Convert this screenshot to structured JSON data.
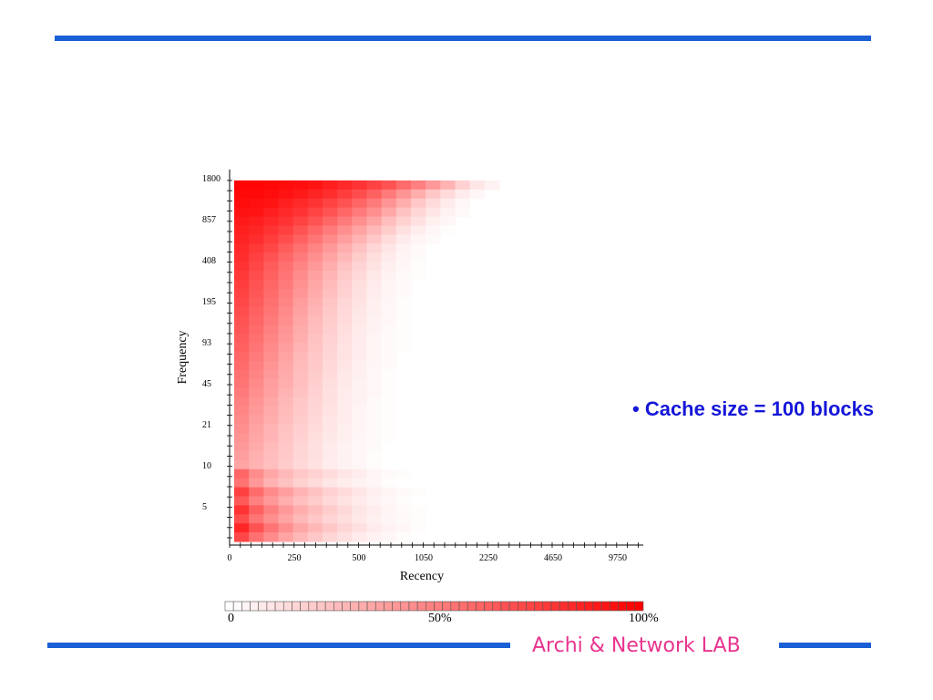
{
  "slide": {
    "bullet": "• Cache size = 100 blocks",
    "footer": "Archi & Network LAB",
    "accent_color": "#1a5fd6",
    "footer_color": "#e8348f",
    "bullet_color": "#1416d8"
  },
  "chart_data": {
    "type": "heatmap",
    "title": "",
    "xlabel": "Recency",
    "ylabel": "Frequency",
    "x_ticks": [
      "0",
      "250",
      "500",
      "1050",
      "2250",
      "4650",
      "9750"
    ],
    "y_ticks": [
      "1800",
      "857",
      "408",
      "195",
      "93",
      "45",
      "21",
      "10",
      "5"
    ],
    "color_scale": {
      "min_label": "0",
      "mid_label": "50%",
      "max_label": "100%",
      "min_color": "#ffffff",
      "max_color": "#ff0000"
    },
    "grid": false,
    "description_of_values": "cell intensity in percent, rows from top (highest frequency) to bottom (lowest frequency), columns from recency 0 outward",
    "intensity": [
      [
        98,
        98,
        97,
        95,
        94,
        92,
        88,
        84,
        80,
        74,
        68,
        58,
        50,
        40,
        30,
        18,
        10,
        5
      ],
      [
        97,
        97,
        95,
        93,
        90,
        86,
        82,
        76,
        70,
        62,
        52,
        42,
        32,
        22,
        14,
        8,
        3,
        0
      ],
      [
        95,
        94,
        92,
        88,
        84,
        80,
        74,
        68,
        60,
        52,
        42,
        32,
        22,
        14,
        8,
        3,
        0,
        0
      ],
      [
        93,
        92,
        88,
        84,
        80,
        74,
        68,
        60,
        52,
        44,
        34,
        24,
        16,
        10,
        5,
        2,
        0,
        0
      ],
      [
        90,
        88,
        84,
        80,
        74,
        68,
        60,
        52,
        44,
        36,
        26,
        18,
        12,
        6,
        3,
        0,
        0,
        0
      ],
      [
        88,
        85,
        80,
        75,
        68,
        60,
        52,
        44,
        36,
        28,
        20,
        12,
        7,
        3,
        1,
        0,
        0,
        0
      ],
      [
        86,
        82,
        76,
        70,
        62,
        54,
        46,
        38,
        30,
        22,
        14,
        8,
        4,
        2,
        0,
        0,
        0,
        0
      ],
      [
        84,
        78,
        72,
        64,
        56,
        48,
        40,
        32,
        24,
        16,
        10,
        5,
        2,
        0,
        0,
        0,
        0,
        0
      ],
      [
        82,
        75,
        68,
        60,
        52,
        44,
        36,
        28,
        20,
        13,
        8,
        4,
        2,
        0,
        0,
        0,
        0,
        0
      ],
      [
        80,
        72,
        64,
        56,
        48,
        40,
        32,
        24,
        17,
        11,
        6,
        3,
        1,
        0,
        0,
        0,
        0,
        0
      ],
      [
        78,
        70,
        62,
        54,
        45,
        37,
        29,
        21,
        15,
        9,
        5,
        2,
        1,
        0,
        0,
        0,
        0,
        0
      ],
      [
        76,
        68,
        60,
        52,
        43,
        35,
        27,
        19,
        13,
        8,
        4,
        2,
        0,
        0,
        0,
        0,
        0,
        0
      ],
      [
        74,
        66,
        58,
        50,
        41,
        33,
        25,
        18,
        12,
        7,
        4,
        2,
        0,
        0,
        0,
        0,
        0,
        0
      ],
      [
        72,
        64,
        56,
        48,
        39,
        31,
        23,
        16,
        11,
        6,
        3,
        1,
        0,
        0,
        0,
        0,
        0,
        0
      ],
      [
        70,
        62,
        54,
        46,
        37,
        29,
        21,
        15,
        10,
        6,
        3,
        1,
        0,
        0,
        0,
        0,
        0,
        0
      ],
      [
        68,
        60,
        52,
        44,
        35,
        27,
        20,
        14,
        9,
        5,
        3,
        1,
        0,
        0,
        0,
        0,
        0,
        0
      ],
      [
        66,
        58,
        50,
        42,
        33,
        26,
        19,
        13,
        8,
        5,
        2,
        1,
        0,
        0,
        0,
        0,
        0,
        0
      ],
      [
        64,
        56,
        48,
        40,
        32,
        24,
        18,
        12,
        8,
        4,
        2,
        1,
        0,
        0,
        0,
        0,
        0,
        0
      ],
      [
        62,
        54,
        46,
        38,
        30,
        23,
        17,
        11,
        7,
        4,
        2,
        1,
        0,
        0,
        0,
        0,
        0,
        0
      ],
      [
        60,
        52,
        44,
        36,
        28,
        22,
        16,
        11,
        7,
        4,
        2,
        0,
        0,
        0,
        0,
        0,
        0,
        0
      ],
      [
        58,
        50,
        42,
        34,
        27,
        21,
        15,
        10,
        6,
        3,
        2,
        0,
        0,
        0,
        0,
        0,
        0,
        0
      ],
      [
        56,
        48,
        40,
        33,
        26,
        20,
        14,
        9,
        6,
        3,
        1,
        0,
        0,
        0,
        0,
        0,
        0,
        0
      ],
      [
        54,
        46,
        38,
        32,
        25,
        19,
        13,
        9,
        5,
        3,
        1,
        0,
        0,
        0,
        0,
        0,
        0,
        0
      ],
      [
        52,
        44,
        37,
        30,
        24,
        18,
        12,
        8,
        5,
        3,
        1,
        0,
        0,
        0,
        0,
        0,
        0,
        0
      ],
      [
        50,
        42,
        35,
        28,
        22,
        17,
        12,
        8,
        5,
        2,
        1,
        0,
        0,
        0,
        0,
        0,
        0,
        0
      ],
      [
        48,
        40,
        33,
        27,
        21,
        16,
        11,
        7,
        4,
        2,
        1,
        0,
        0,
        0,
        0,
        0,
        0,
        0
      ],
      [
        46,
        38,
        32,
        26,
        20,
        15,
        10,
        7,
        4,
        2,
        1,
        0,
        0,
        0,
        0,
        0,
        0,
        0
      ],
      [
        44,
        36,
        30,
        24,
        19,
        14,
        10,
        6,
        4,
        2,
        1,
        0,
        0,
        0,
        0,
        0,
        0,
        0
      ],
      [
        42,
        35,
        29,
        23,
        18,
        13,
        9,
        6,
        3,
        2,
        1,
        0,
        0,
        0,
        0,
        0,
        0,
        0
      ],
      [
        40,
        33,
        27,
        22,
        17,
        12,
        8,
        5,
        3,
        2,
        0,
        0,
        0,
        0,
        0,
        0,
        0,
        0
      ],
      [
        38,
        31,
        26,
        21,
        16,
        12,
        8,
        5,
        3,
        1,
        0,
        0,
        0,
        0,
        0,
        0,
        0,
        0
      ],
      [
        36,
        30,
        25,
        20,
        15,
        11,
        7,
        5,
        3,
        1,
        0,
        0,
        0,
        0,
        0,
        0,
        0,
        0
      ],
      [
        60,
        45,
        35,
        28,
        22,
        18,
        14,
        10,
        7,
        4,
        2,
        1,
        0,
        0,
        0,
        0,
        0,
        0
      ],
      [
        55,
        40,
        30,
        24,
        18,
        14,
        10,
        7,
        5,
        3,
        1,
        0,
        0,
        0,
        0,
        0,
        0,
        0
      ],
      [
        75,
        58,
        46,
        38,
        30,
        24,
        18,
        14,
        10,
        6,
        4,
        2,
        1,
        0,
        0,
        0,
        0,
        0
      ],
      [
        65,
        50,
        40,
        32,
        25,
        20,
        15,
        11,
        8,
        5,
        3,
        1,
        0,
        0,
        0,
        0,
        0,
        0
      ],
      [
        80,
        62,
        50,
        40,
        32,
        26,
        20,
        15,
        10,
        7,
        4,
        2,
        1,
        0,
        0,
        0,
        0,
        0
      ],
      [
        70,
        54,
        44,
        36,
        28,
        22,
        17,
        13,
        9,
        6,
        3,
        2,
        1,
        0,
        0,
        0,
        0,
        0
      ],
      [
        85,
        68,
        54,
        44,
        35,
        28,
        22,
        16,
        12,
        8,
        5,
        3,
        1,
        0,
        0,
        0,
        0,
        0
      ],
      [
        72,
        56,
        45,
        36,
        28,
        22,
        16,
        12,
        8,
        5,
        3,
        1,
        0,
        0,
        0,
        0,
        0,
        0
      ]
    ]
  }
}
